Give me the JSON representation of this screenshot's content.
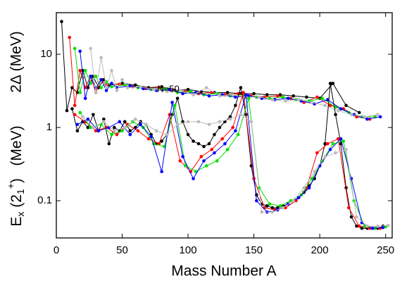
{
  "chart_data": {
    "type": "scatter-line",
    "x_label": "Mass Number A",
    "y_label_upper": "2Δ (MeV)",
    "y_label_lower": [
      "E",
      "x",
      " (2",
      "1",
      "+",
      ")",
      "   (MeV)"
    ],
    "annotation": {
      "text": "N=50",
      "x": 85,
      "y": 3.3
    },
    "xlim": [
      0,
      255
    ],
    "xticks": [
      0,
      50,
      100,
      150,
      200,
      250
    ],
    "ylim": [
      0.031,
      37
    ],
    "yticks": [
      0.1,
      1,
      10
    ],
    "log_y": true,
    "series": [
      {
        "color": "#000000",
        "x": [
          4,
          8,
          12,
          16,
          20,
          24,
          28,
          32,
          36,
          40,
          50,
          60,
          70,
          80,
          90,
          100,
          110,
          120,
          130,
          140,
          150,
          160,
          170,
          180,
          190,
          200,
          210,
          220,
          230
        ],
        "values": [
          28,
          1.7,
          3.5,
          3.0,
          6,
          3.5,
          5,
          3.5,
          4.5,
          3.8,
          4,
          3.8,
          3.5,
          3.6,
          3.2,
          3.3,
          3.1,
          3.0,
          3.0,
          2.9,
          2.9,
          2.8,
          2.8,
          2.7,
          2.6,
          2.5,
          4,
          2,
          1.6
        ]
      },
      {
        "color": "#ff0000",
        "x": [
          10,
          14,
          18,
          22,
          26,
          30,
          34,
          38,
          48,
          58,
          68,
          78,
          88,
          98,
          108,
          118,
          128,
          138,
          148,
          158,
          168,
          178,
          188,
          198,
          208,
          218,
          228,
          238
        ],
        "values": [
          17,
          2.0,
          6,
          3.5,
          5,
          3,
          4.5,
          3.8,
          3.9,
          3.6,
          3.4,
          3.5,
          3.2,
          3.1,
          2.9,
          3.0,
          2.8,
          2.9,
          2.7,
          2.6,
          2.7,
          2.5,
          2.2,
          2.6,
          2.0,
          1.8,
          1.4,
          1.3
        ]
      },
      {
        "color": "#00e000",
        "x": [
          14,
          18,
          22,
          26,
          30,
          34,
          38,
          42,
          52,
          62,
          72,
          82,
          92,
          102,
          112,
          122,
          132,
          142,
          152,
          162,
          172,
          182,
          192,
          202,
          212,
          222,
          232,
          242
        ],
        "values": [
          12,
          3,
          6,
          4,
          5,
          3.5,
          4.2,
          3.6,
          3.8,
          3.5,
          3.3,
          3.4,
          3.0,
          3.1,
          2.8,
          2.9,
          2.7,
          2.8,
          2.6,
          2.5,
          2.6,
          2.4,
          2.3,
          2.5,
          1.9,
          1.6,
          1.4,
          1.4
        ]
      },
      {
        "color": "#0000ff",
        "x": [
          18,
          22,
          26,
          30,
          34,
          38,
          42,
          46,
          56,
          66,
          76,
          86,
          96,
          106,
          116,
          126,
          136,
          146,
          156,
          166,
          176,
          186,
          196,
          206,
          216,
          226,
          236,
          246
        ],
        "values": [
          11,
          2.5,
          5,
          3.5,
          4.5,
          3.2,
          4,
          3.5,
          3.7,
          3.4,
          3.2,
          3.3,
          2.9,
          3.0,
          2.7,
          2.8,
          2.6,
          2.7,
          2.5,
          2.4,
          2.5,
          2.3,
          2.1,
          2.4,
          1.8,
          1.5,
          1.3,
          1.4
        ]
      },
      {
        "color": "#bbbbbb",
        "x": [
          26,
          30,
          34,
          38,
          42,
          46,
          50,
          54,
          64,
          74,
          84,
          94,
          104,
          114,
          124,
          134,
          144,
          154,
          164,
          174,
          184,
          194,
          204,
          214,
          224,
          234,
          244
        ],
        "values": [
          12,
          3,
          9,
          3.5,
          6,
          3.2,
          4.5,
          3.5,
          3.6,
          3.3,
          3.1,
          3.2,
          2.8,
          3.5,
          2.7,
          2.8,
          2.6,
          2.6,
          2.4,
          2.3,
          2.4,
          2.2,
          2.0,
          1.7,
          1.5,
          1.4,
          1.5
        ]
      },
      {
        "color": "#000000",
        "x": [
          12,
          16,
          20,
          24,
          28,
          32,
          36,
          40,
          44,
          48,
          52,
          56,
          60,
          64,
          68,
          72,
          76,
          80,
          84,
          88,
          92,
          96,
          100,
          104,
          108,
          112,
          116,
          120,
          124,
          128,
          132,
          136,
          140,
          144,
          148,
          152,
          156,
          160,
          164,
          168,
          172,
          176,
          180,
          184,
          188,
          192,
          196,
          200,
          204,
          208,
          212,
          216,
          220,
          224,
          228,
          232,
          236,
          240,
          244,
          248
        ],
        "values": [
          1.8,
          0.9,
          1.2,
          1.0,
          1.5,
          0.9,
          1.3,
          0.6,
          1.0,
          0.9,
          1.2,
          0.9,
          1.0,
          1.2,
          1.1,
          0.8,
          0.6,
          0.65,
          0.8,
          1.5,
          2.5,
          1.2,
          0.8,
          0.65,
          0.6,
          0.55,
          0.6,
          0.8,
          1.0,
          1.2,
          1.4,
          2.0,
          3.5,
          1.5,
          0.3,
          0.12,
          0.09,
          0.085,
          0.08,
          0.08,
          0.085,
          0.09,
          0.1,
          0.11,
          0.13,
          0.16,
          0.2,
          0.3,
          0.6,
          4.0,
          1.5,
          0.6,
          0.15,
          0.06,
          0.045,
          0.042,
          0.042,
          0.042,
          0.042,
          0.045
        ]
      },
      {
        "color": "#ff0000",
        "x": [
          14,
          22,
          30,
          38,
          46,
          54,
          62,
          70,
          78,
          86,
          94,
          102,
          110,
          118,
          126,
          134,
          142,
          150,
          158,
          166,
          174,
          182,
          190,
          198,
          206,
          214,
          222,
          230,
          238,
          246
        ],
        "values": [
          1.5,
          1.2,
          0.9,
          1.0,
          0.8,
          1.1,
          0.9,
          0.7,
          0.6,
          1.5,
          0.35,
          0.25,
          0.4,
          0.5,
          0.7,
          1.0,
          3.0,
          0.2,
          0.08,
          0.075,
          0.08,
          0.1,
          0.15,
          0.45,
          0.6,
          0.7,
          0.08,
          0.045,
          0.042,
          0.042
        ]
      },
      {
        "color": "#00e000",
        "x": [
          18,
          26,
          34,
          42,
          50,
          58,
          66,
          74,
          82,
          90,
          98,
          106,
          114,
          122,
          130,
          138,
          146,
          154,
          162,
          170,
          178,
          186,
          194,
          202,
          210,
          218,
          226,
          234,
          242,
          250
        ],
        "values": [
          1.6,
          1.0,
          1.1,
          0.8,
          0.9,
          1.2,
          1.0,
          0.6,
          0.55,
          2.0,
          0.3,
          0.25,
          0.3,
          0.35,
          0.5,
          0.8,
          2.5,
          0.15,
          0.09,
          0.085,
          0.1,
          0.12,
          0.2,
          0.35,
          0.6,
          0.65,
          0.1,
          0.045,
          0.042,
          0.044
        ]
      },
      {
        "color": "#0000ff",
        "x": [
          16,
          24,
          32,
          40,
          48,
          56,
          64,
          72,
          80,
          88,
          96,
          104,
          112,
          120,
          128,
          136,
          144,
          152,
          160,
          168,
          176,
          184,
          192,
          200,
          208,
          216,
          224,
          232,
          240,
          248
        ],
        "values": [
          1.1,
          1.3,
          0.9,
          1.0,
          1.2,
          0.8,
          1.1,
          0.75,
          0.25,
          2.2,
          0.4,
          0.2,
          0.35,
          0.45,
          0.6,
          0.9,
          2.8,
          0.1,
          0.07,
          0.075,
          0.09,
          0.11,
          0.15,
          0.3,
          0.5,
          0.7,
          0.2,
          0.05,
          0.042,
          0.043
        ]
      },
      {
        "color": "#bbbbbb",
        "x": [
          20,
          28,
          36,
          44,
          52,
          60,
          68,
          76,
          84,
          92,
          100,
          108,
          116,
          124,
          132,
          140,
          148,
          156,
          164,
          172,
          180,
          188,
          196,
          204,
          212,
          220,
          228,
          236,
          244,
          252
        ],
        "values": [
          1.4,
          1.0,
          1.2,
          0.9,
          1.0,
          1.3,
          1.1,
          0.9,
          0.8,
          1.1,
          1.2,
          1.2,
          1.1,
          1.2,
          1.3,
          1.5,
          1.2,
          0.07,
          0.07,
          0.08,
          0.1,
          0.15,
          0.25,
          0.4,
          0.45,
          0.5,
          0.06,
          0.045,
          0.045,
          0.046
        ]
      }
    ]
  }
}
